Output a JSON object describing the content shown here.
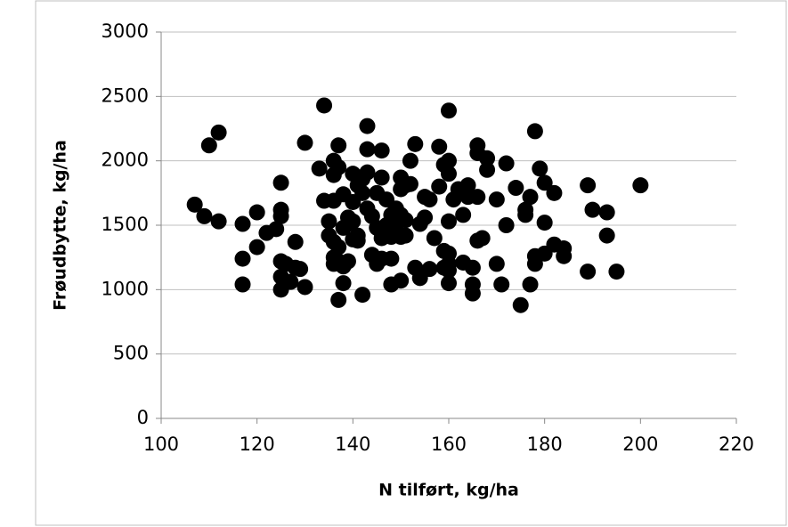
{
  "chart_data": {
    "type": "scatter",
    "xlabel": "N tilført, kg/ha",
    "ylabel": "Frøudbytte, kg/ha",
    "color": "#000000",
    "xlim": [
      100,
      220
    ],
    "xticks": [
      100,
      120,
      140,
      160,
      180,
      200,
      220
    ],
    "ylim": [
      0,
      3000
    ],
    "yticks": [
      0,
      500,
      1000,
      1500,
      2000,
      2500,
      3000
    ],
    "grid": true,
    "x": [
      107,
      109,
      110,
      112,
      112,
      117,
      117,
      117,
      120,
      120,
      122,
      124,
      125,
      125,
      125,
      125,
      125,
      125,
      126,
      127,
      128,
      128,
      129,
      130,
      130,
      133,
      134,
      134,
      135,
      135,
      136,
      136,
      136,
      136,
      136,
      136,
      137,
      137,
      137,
      137,
      137,
      138,
      138,
      138,
      138,
      139,
      139,
      139,
      140,
      140,
      140,
      140,
      141,
      141,
      141,
      142,
      142,
      142,
      143,
      143,
      143,
      143,
      144,
      144,
      145,
      145,
      145,
      146,
      146,
      146,
      146,
      147,
      147,
      147,
      148,
      148,
      148,
      148,
      149,
      149,
      149,
      150,
      150,
      150,
      150,
      150,
      151,
      151,
      151,
      152,
      152,
      153,
      153,
      154,
      154,
      155,
      155,
      156,
      156,
      157,
      158,
      158,
      159,
      159,
      159,
      160,
      160,
      160,
      160,
      160,
      160,
      160,
      160,
      161,
      162,
      163,
      163,
      164,
      164,
      165,
      165,
      165,
      166,
      166,
      166,
      166,
      167,
      168,
      168,
      170,
      170,
      171,
      172,
      172,
      174,
      176,
      176,
      175,
      177,
      177,
      178,
      178,
      178,
      179,
      180,
      180,
      180,
      182,
      182,
      184,
      184,
      189,
      189,
      190,
      193,
      193,
      195,
      200
    ],
    "y": [
      1660,
      1570,
      2120,
      2220,
      1530,
      1510,
      1240,
      1040,
      1600,
      1330,
      1440,
      1470,
      1830,
      1620,
      1570,
      1220,
      1100,
      1000,
      1200,
      1060,
      1370,
      1170,
      1160,
      2140,
      1020,
      1940,
      2430,
      1690,
      1530,
      1420,
      2000,
      1890,
      1690,
      1370,
      1250,
      1200,
      2120,
      1950,
      1330,
      1220,
      920,
      1740,
      1480,
      1180,
      1050,
      1560,
      1510,
      1220,
      1900,
      1680,
      1530,
      1390,
      1810,
      1420,
      1380,
      1860,
      1750,
      960,
      2270,
      2090,
      1910,
      1630,
      1570,
      1270,
      1750,
      1480,
      1200,
      2080,
      1870,
      1400,
      1240,
      1700,
      1500,
      1440,
      1580,
      1410,
      1240,
      1040,
      1630,
      1500,
      1450,
      1870,
      1780,
      1580,
      1410,
      1070,
      1810,
      1540,
      1420,
      2000,
      1820,
      2130,
      1170,
      1510,
      1090,
      1720,
      1560,
      1700,
      1160,
      1400,
      2110,
      1800,
      1970,
      1300,
      1170,
      2390,
      2000,
      1900,
      1530,
      1280,
      1200,
      1150,
      1050,
      1700,
      1780,
      1580,
      1210,
      1810,
      1720,
      1170,
      1040,
      970,
      2120,
      2060,
      1720,
      1380,
      1400,
      2020,
      1930,
      1700,
      1200,
      1040,
      1980,
      1500,
      1790,
      1620,
      1580,
      880,
      1720,
      1040,
      2230,
      1260,
      1200,
      1940,
      1830,
      1520,
      1280,
      1750,
      1350,
      1320,
      1260,
      1810,
      1140,
      1620,
      1600,
      1420,
      1140,
      1810
    ]
  }
}
